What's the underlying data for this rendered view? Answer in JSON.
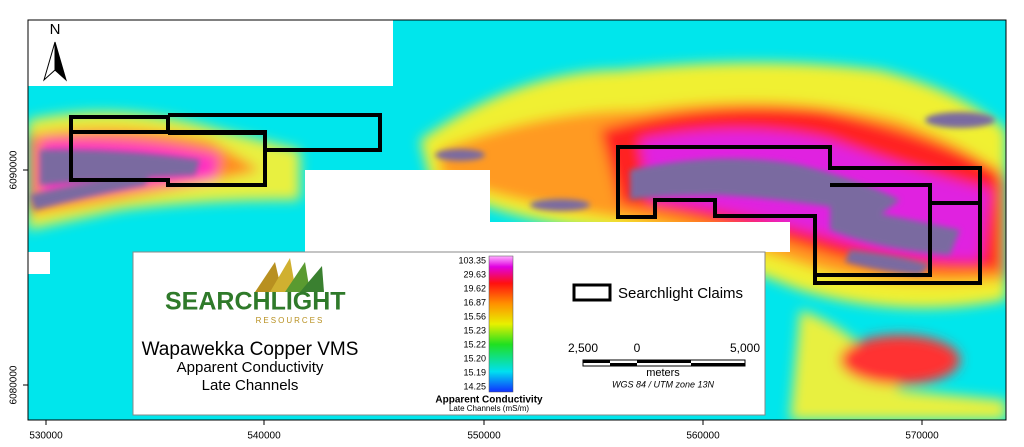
{
  "north_arrow": "N",
  "x_axis": {
    "labels": [
      "530000",
      "540000",
      "550000",
      "560000",
      "570000"
    ]
  },
  "y_axis": {
    "labels": [
      "6090000",
      "6080000"
    ]
  },
  "logo": {
    "name": "SEARCHLIGHT",
    "subtitle": "RESOURCES"
  },
  "title": {
    "lines": [
      "Wapawekka Copper VMS",
      "Apparent Conductivity",
      "Late Channels"
    ]
  },
  "colorbar": {
    "labels": [
      "103.35",
      "29.63",
      "19.62",
      "16.87",
      "15.56",
      "15.23",
      "15.22",
      "15.20",
      "15.19",
      "14.25"
    ],
    "title": "Apparent Conductivity",
    "subtitle": "Late Channels (mS/m)"
  },
  "legend": {
    "label": "Searchlight Claims"
  },
  "scale_bar": {
    "labels": [
      "2,500",
      "0",
      "5,000"
    ],
    "unit": "meters",
    "projection": "WGS 84 / UTM zone 13N"
  }
}
